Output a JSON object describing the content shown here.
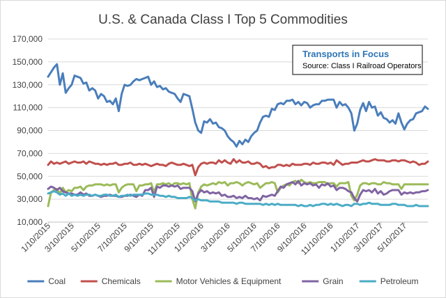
{
  "chart_data": {
    "type": "line",
    "title": "U.S. & Canada Class I Top 5 Commodities",
    "annotation": {
      "title": "Transports  in Focus",
      "source": "Source: Class I Railroad Operators"
    },
    "xlabel": "",
    "ylabel": "",
    "ylim": [
      10000,
      170000
    ],
    "yticks": [
      "170,000",
      "150,000",
      "130,000",
      "110,000",
      "90,000",
      "70,000",
      "50,000",
      "30,000",
      "10,000"
    ],
    "ytick_values": [
      170000,
      150000,
      130000,
      110000,
      90000,
      70000,
      50000,
      30000,
      10000
    ],
    "xticks": [
      "1/10/2015",
      "3/10/2015",
      "5/10/2015",
      "7/10/2015",
      "9/10/2015",
      "11/10/2015",
      "1/10/2016",
      "3/10/2016",
      "5/10/2016",
      "7/10/2016",
      "9/10/2016",
      "11/10/2016",
      "1/10/2017",
      "3/10/2017",
      "5/10/2017"
    ],
    "xtick_weeks": [
      0,
      8,
      17,
      26,
      35,
      44,
      52,
      61,
      70,
      78,
      87,
      96,
      105,
      113,
      121
    ],
    "x_start": "1/10/2015",
    "x_interval": "weekly",
    "grid": true,
    "legend_position": "bottom",
    "series": [
      {
        "name": "Coal",
        "color": "#4a7ebb",
        "values": [
          137000,
          141000,
          145000,
          148000,
          130000,
          140000,
          123000,
          127000,
          130000,
          138000,
          137000,
          136000,
          131000,
          132000,
          125000,
          127000,
          125000,
          118000,
          122000,
          120000,
          115000,
          116000,
          113000,
          118000,
          107000,
          122000,
          130000,
          129000,
          130000,
          133000,
          135000,
          134000,
          135000,
          136000,
          137000,
          130000,
          133000,
          128000,
          129000,
          126000,
          127000,
          124000,
          123000,
          122000,
          118000,
          115000,
          122000,
          121000,
          120000,
          109000,
          97000,
          90000,
          88000,
          98000,
          97000,
          100000,
          96000,
          97000,
          93000,
          92000,
          90000,
          85000,
          82000,
          80000,
          76000,
          81000,
          78000,
          82000,
          80000,
          85000,
          88000,
          90000,
          97000,
          102000,
          103000,
          102000,
          109000,
          108000,
          113000,
          114000,
          113000,
          116000,
          116000,
          117000,
          113000,
          115000,
          112000,
          115000,
          114000,
          110000,
          112000,
          113000,
          113000,
          116000,
          116000,
          117000,
          117000,
          117000,
          110000,
          115000,
          112000,
          113000,
          110000,
          105000,
          90000,
          96000,
          108000,
          114000,
          107000,
          115000,
          110000,
          111000,
          103000,
          106000,
          101000,
          100000,
          97000,
          99000,
          96000,
          105000,
          97000,
          91000,
          96000,
          99000,
          100000,
          105000,
          106000,
          107000,
          111000,
          109000
        ]
      },
      {
        "name": "Chemicals",
        "color": "#c0504d",
        "values": [
          60000,
          63000,
          61000,
          62000,
          61000,
          62000,
          63000,
          61000,
          62000,
          63000,
          62000,
          62000,
          63000,
          61000,
          63000,
          62000,
          61000,
          61000,
          60000,
          61000,
          60000,
          61000,
          61000,
          62000,
          60000,
          60000,
          61000,
          61000,
          62000,
          60000,
          60000,
          61000,
          60000,
          61000,
          60000,
          59000,
          60000,
          61000,
          60000,
          60000,
          59000,
          61000,
          62000,
          61000,
          60000,
          60000,
          61000,
          60000,
          59000,
          60000,
          51000,
          58000,
          61000,
          62000,
          61000,
          62000,
          62000,
          61000,
          64000,
          62000,
          64000,
          62000,
          61000,
          65000,
          62000,
          64000,
          62000,
          62000,
          63000,
          61000,
          61000,
          62000,
          61000,
          58000,
          59000,
          57000,
          58000,
          58000,
          60000,
          60000,
          59000,
          60000,
          59000,
          61000,
          60000,
          60000,
          60000,
          61000,
          61000,
          60000,
          62000,
          61000,
          61000,
          62000,
          62000,
          61000,
          62000,
          60000,
          64000,
          62000,
          60000,
          61000,
          61000,
          62000,
          62000,
          62000,
          63000,
          64000,
          63000,
          63000,
          64000,
          65000,
          64000,
          64000,
          64000,
          63000,
          63000,
          64000,
          64000,
          63000,
          64000,
          64000,
          63000,
          62000,
          63000,
          62000,
          60000,
          61000,
          61000,
          63000
        ]
      },
      {
        "name": "Motor Vehicles & Equipment",
        "color": "#9bbb59",
        "values": [
          24000,
          36000,
          38000,
          39000,
          35000,
          40000,
          36000,
          38000,
          37000,
          40000,
          40000,
          41000,
          38000,
          41000,
          42000,
          42000,
          43000,
          43000,
          43000,
          42000,
          43000,
          42000,
          43000,
          43000,
          36000,
          40000,
          42000,
          43000,
          43000,
          43000,
          37000,
          42000,
          42000,
          43000,
          43000,
          44000,
          36000,
          43000,
          43000,
          44000,
          43000,
          44000,
          42000,
          44000,
          44000,
          43000,
          44000,
          43000,
          44000,
          30000,
          22000,
          36000,
          41000,
          43000,
          42000,
          43000,
          44000,
          43000,
          45000,
          44000,
          45000,
          42000,
          44000,
          44000,
          45000,
          44000,
          42000,
          44000,
          45000,
          44000,
          43000,
          44000,
          40000,
          42000,
          44000,
          44000,
          45000,
          44000,
          36000,
          40000,
          42000,
          43000,
          42000,
          45000,
          46000,
          44000,
          47000,
          45000,
          44000,
          45000,
          44000,
          44000,
          45000,
          45000,
          45000,
          43000,
          44000,
          44000,
          41000,
          44000,
          44000,
          44000,
          45000,
          33000,
          29000,
          34000,
          42000,
          44000,
          44000,
          43000,
          44000,
          44000,
          43000,
          43000,
          45000,
          44000,
          44000,
          43000,
          43000,
          43000,
          39000,
          43000,
          43000,
          43000,
          43000,
          43000,
          43000,
          43000,
          43000,
          43000
        ]
      },
      {
        "name": "Grain",
        "color": "#8064a2",
        "values": [
          39000,
          41000,
          40000,
          38000,
          40000,
          37000,
          36000,
          35000,
          35000,
          34000,
          34000,
          36000,
          34000,
          35000,
          33000,
          33000,
          34000,
          33000,
          32000,
          33000,
          33000,
          34000,
          33000,
          33000,
          32000,
          32000,
          33000,
          33000,
          34000,
          33000,
          32000,
          34000,
          33000,
          38000,
          38000,
          40000,
          32000,
          41000,
          40000,
          42000,
          42000,
          41000,
          42000,
          41000,
          42000,
          39000,
          40000,
          40000,
          40000,
          37000,
          28000,
          35000,
          38000,
          36000,
          37000,
          35000,
          36000,
          35000,
          36000,
          33000,
          34000,
          32000,
          32000,
          33000,
          31000,
          32000,
          31000,
          33000,
          31000,
          31000,
          30000,
          31000,
          29000,
          33000,
          32000,
          33000,
          34000,
          33000,
          37000,
          41000,
          40000,
          43000,
          44000,
          45000,
          43000,
          46000,
          42000,
          44000,
          43000,
          44000,
          42000,
          43000,
          40000,
          43000,
          42000,
          44000,
          41000,
          42000,
          38000,
          40000,
          40000,
          39000,
          37000,
          36000,
          31000,
          28000,
          34000,
          38000,
          37000,
          38000,
          36000,
          39000,
          35000,
          37000,
          34000,
          35000,
          37000,
          38000,
          38000,
          38000,
          34000,
          36000,
          35000,
          36000,
          35000,
          36000,
          36000,
          37000,
          37000,
          38000
        ]
      },
      {
        "name": "Petroleum",
        "color": "#4bacc6",
        "values": [
          35000,
          36000,
          37000,
          36000,
          34000,
          35000,
          33000,
          35000,
          33000,
          34000,
          33000,
          34000,
          33000,
          34000,
          34000,
          33000,
          34000,
          33000,
          33000,
          34000,
          34000,
          33000,
          33000,
          34000,
          32000,
          33000,
          33000,
          34000,
          33000,
          34000,
          34000,
          34000,
          34000,
          35000,
          35000,
          34000,
          34000,
          34000,
          33000,
          33000,
          32000,
          33000,
          32000,
          32000,
          31000,
          31000,
          31000,
          31000,
          32000,
          31000,
          29000,
          30000,
          29000,
          29000,
          29000,
          28000,
          28000,
          28000,
          28000,
          27000,
          27000,
          27000,
          27000,
          27000,
          26000,
          27000,
          27000,
          26000,
          26000,
          26000,
          26000,
          26000,
          26000,
          25000,
          26000,
          25000,
          26000,
          25000,
          26000,
          25000,
          25000,
          25000,
          25000,
          25000,
          25000,
          24000,
          25000,
          24000,
          24000,
          25000,
          24000,
          25000,
          25000,
          26000,
          26000,
          25000,
          26000,
          25000,
          26000,
          25000,
          24000,
          25000,
          25000,
          24000,
          26000,
          26000,
          25000,
          26000,
          26000,
          27000,
          26000,
          26000,
          26000,
          25000,
          25000,
          25000,
          25000,
          26000,
          26000,
          25000,
          25000,
          25000,
          24000,
          24000,
          24000,
          25000,
          24000,
          24000,
          24000,
          24000
        ]
      }
    ]
  }
}
